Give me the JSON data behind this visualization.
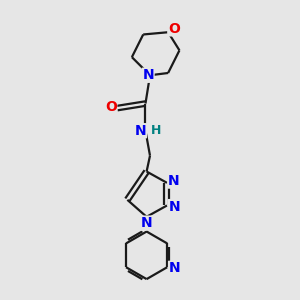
{
  "bg_color": "#e6e6e6",
  "bond_color": "#1a1a1a",
  "N_color": "#0000ee",
  "O_color": "#ee0000",
  "H_color": "#008080",
  "bond_width": 1.6,
  "figsize": [
    3.0,
    3.0
  ],
  "dpi": 100,
  "xlim": [
    0,
    10
  ],
  "ylim": [
    0,
    13
  ]
}
